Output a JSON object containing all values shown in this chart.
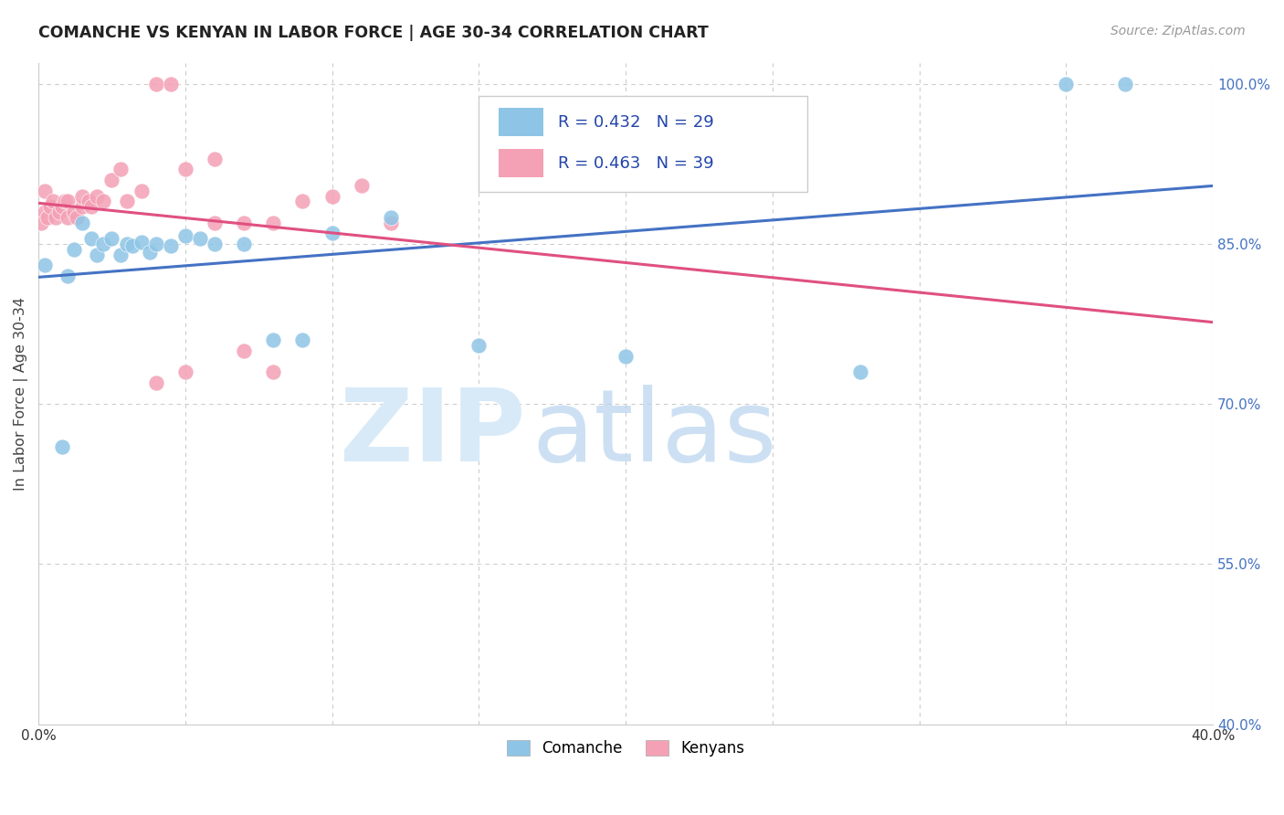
{
  "title": "COMANCHE VS KENYAN IN LABOR FORCE | AGE 30-34 CORRELATION CHART",
  "source": "Source: ZipAtlas.com",
  "ylabel": "In Labor Force | Age 30-34",
  "x_min": 0.0,
  "x_max": 0.4,
  "y_min": 0.4,
  "y_max": 1.02,
  "x_ticks": [
    0.0,
    0.05,
    0.1,
    0.15,
    0.2,
    0.25,
    0.3,
    0.35,
    0.4
  ],
  "x_tick_labels": [
    "0.0%",
    "",
    "",
    "",
    "",
    "",
    "",
    "",
    "40.0%"
  ],
  "y_ticks_right": [
    0.4,
    0.55,
    0.7,
    0.85,
    1.0
  ],
  "y_tick_labels_right": [
    "40.0%",
    "55.0%",
    "70.0%",
    "85.0%",
    "100.0%"
  ],
  "comanche_R": 0.432,
  "comanche_N": 29,
  "kenyan_R": 0.463,
  "kenyan_N": 39,
  "comanche_color": "#8ec5e6",
  "kenyan_color": "#f4a0b5",
  "comanche_line_color": "#4472c4",
  "kenyan_line_color": "#e05080",
  "comanche_x": [
    0.002,
    0.008,
    0.01,
    0.012,
    0.015,
    0.018,
    0.02,
    0.022,
    0.025,
    0.028,
    0.03,
    0.032,
    0.035,
    0.038,
    0.04,
    0.045,
    0.05,
    0.055,
    0.06,
    0.07,
    0.08,
    0.09,
    0.1,
    0.12,
    0.15,
    0.2,
    0.28,
    0.35,
    0.37
  ],
  "comanche_y": [
    0.83,
    0.66,
    0.82,
    0.845,
    0.87,
    0.855,
    0.84,
    0.85,
    0.855,
    0.84,
    0.85,
    0.848,
    0.852,
    0.842,
    0.85,
    0.848,
    0.858,
    0.855,
    0.85,
    0.85,
    0.76,
    0.76,
    0.86,
    0.875,
    0.755,
    0.745,
    0.73,
    1.0,
    1.0
  ],
  "kenyan_x": [
    0.001,
    0.002,
    0.002,
    0.003,
    0.004,
    0.005,
    0.006,
    0.007,
    0.008,
    0.009,
    0.01,
    0.01,
    0.012,
    0.013,
    0.015,
    0.015,
    0.017,
    0.018,
    0.02,
    0.022,
    0.025,
    0.028,
    0.03,
    0.035,
    0.04,
    0.045,
    0.05,
    0.06,
    0.07,
    0.08,
    0.09,
    0.1,
    0.11,
    0.12,
    0.04,
    0.05,
    0.06,
    0.07,
    0.08
  ],
  "kenyan_y": [
    0.87,
    0.88,
    0.9,
    0.875,
    0.885,
    0.89,
    0.875,
    0.88,
    0.885,
    0.89,
    0.89,
    0.875,
    0.88,
    0.875,
    0.885,
    0.895,
    0.89,
    0.885,
    0.895,
    0.89,
    0.91,
    0.92,
    0.89,
    0.9,
    1.0,
    1.0,
    0.92,
    0.93,
    0.87,
    0.87,
    0.89,
    0.895,
    0.905,
    0.87,
    0.72,
    0.73,
    0.87,
    0.75,
    0.73
  ],
  "watermark_zip_color": "#d0e8f8",
  "watermark_atlas_color": "#b0cce8",
  "legend_color_blue": "#8ec5e6",
  "legend_color_pink": "#f4a0b5"
}
